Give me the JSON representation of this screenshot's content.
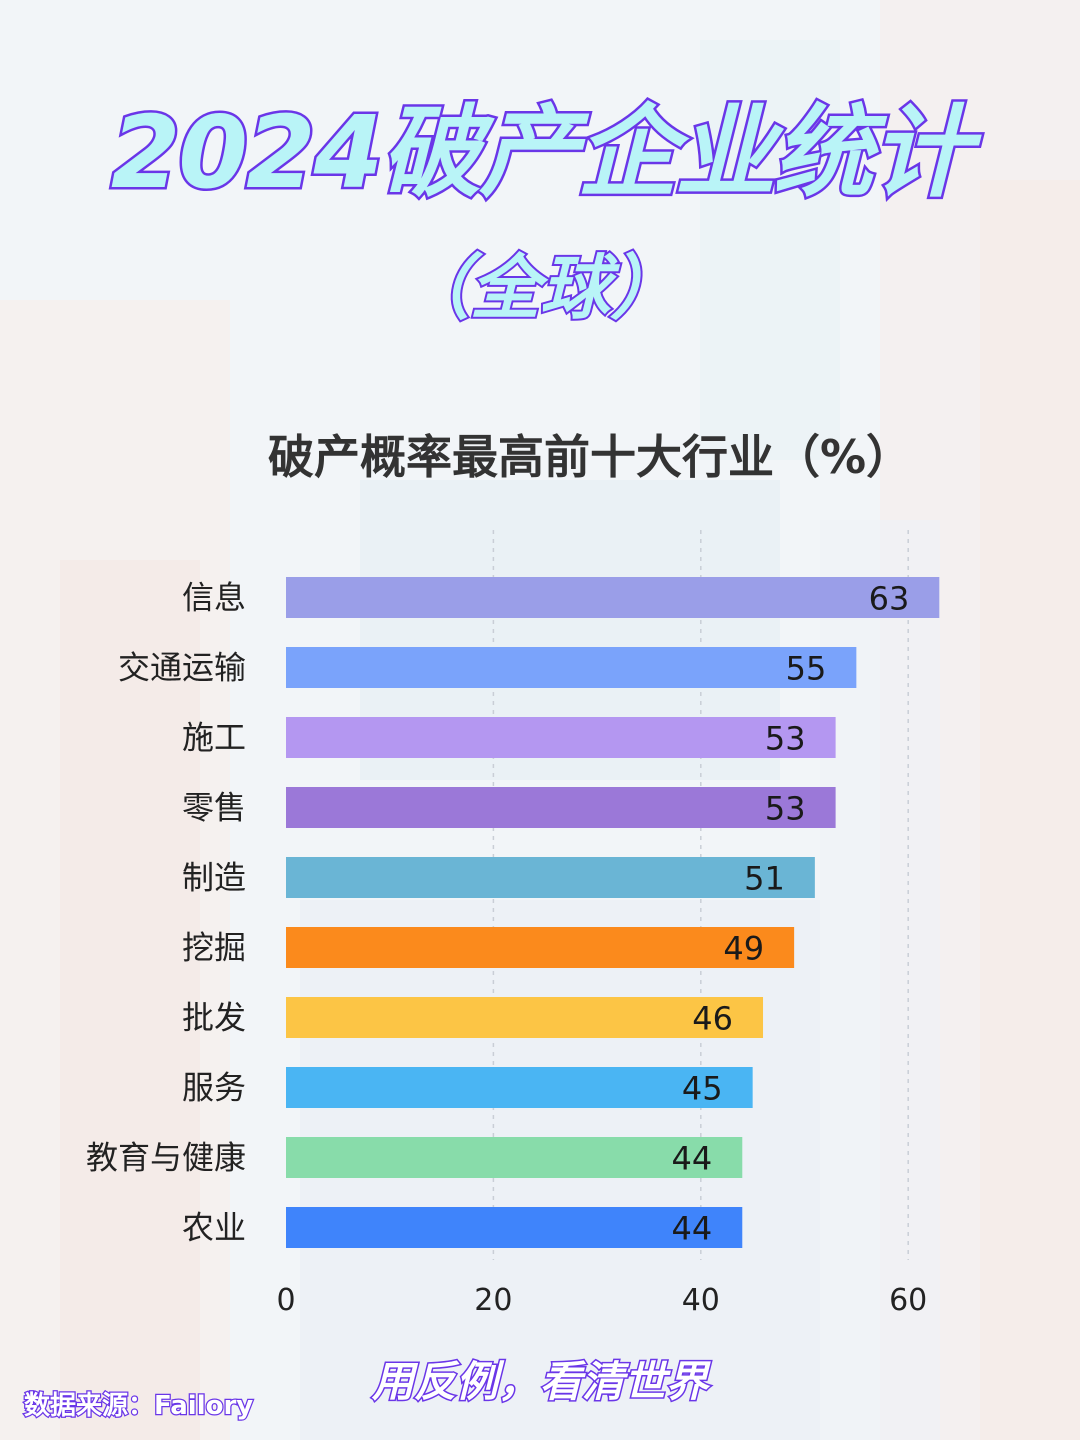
{
  "header": {
    "title": "2024破产企业统计",
    "subtitle": "（全球）"
  },
  "footer": {
    "slogan": "用反例，看清世界",
    "source": "数据来源：Failory"
  },
  "chart_data": {
    "type": "bar",
    "orientation": "horizontal",
    "title": "破产概率最高前十大行业（%）",
    "xlabel": "",
    "ylabel": "",
    "xlim": [
      0,
      60
    ],
    "ticks": [
      "0",
      "20",
      "40",
      "60"
    ],
    "tick_values": [
      0,
      20,
      40,
      60
    ],
    "grid": true,
    "legend": "none",
    "categories": [
      "信息",
      "交通运输",
      "施工",
      "零售",
      "制造",
      "挖掘",
      "批发",
      "服务",
      "教育与健康",
      "农业"
    ],
    "values": [
      63,
      55,
      53,
      53,
      51,
      49,
      46,
      45,
      44,
      44
    ],
    "colors": [
      "#9a9ee8",
      "#7aa3fb",
      "#b497f1",
      "#9b78d8",
      "#6ab5d5",
      "#fb8a1c",
      "#fcc545",
      "#4ab5f3",
      "#88dcaa",
      "#3f84fb"
    ]
  }
}
